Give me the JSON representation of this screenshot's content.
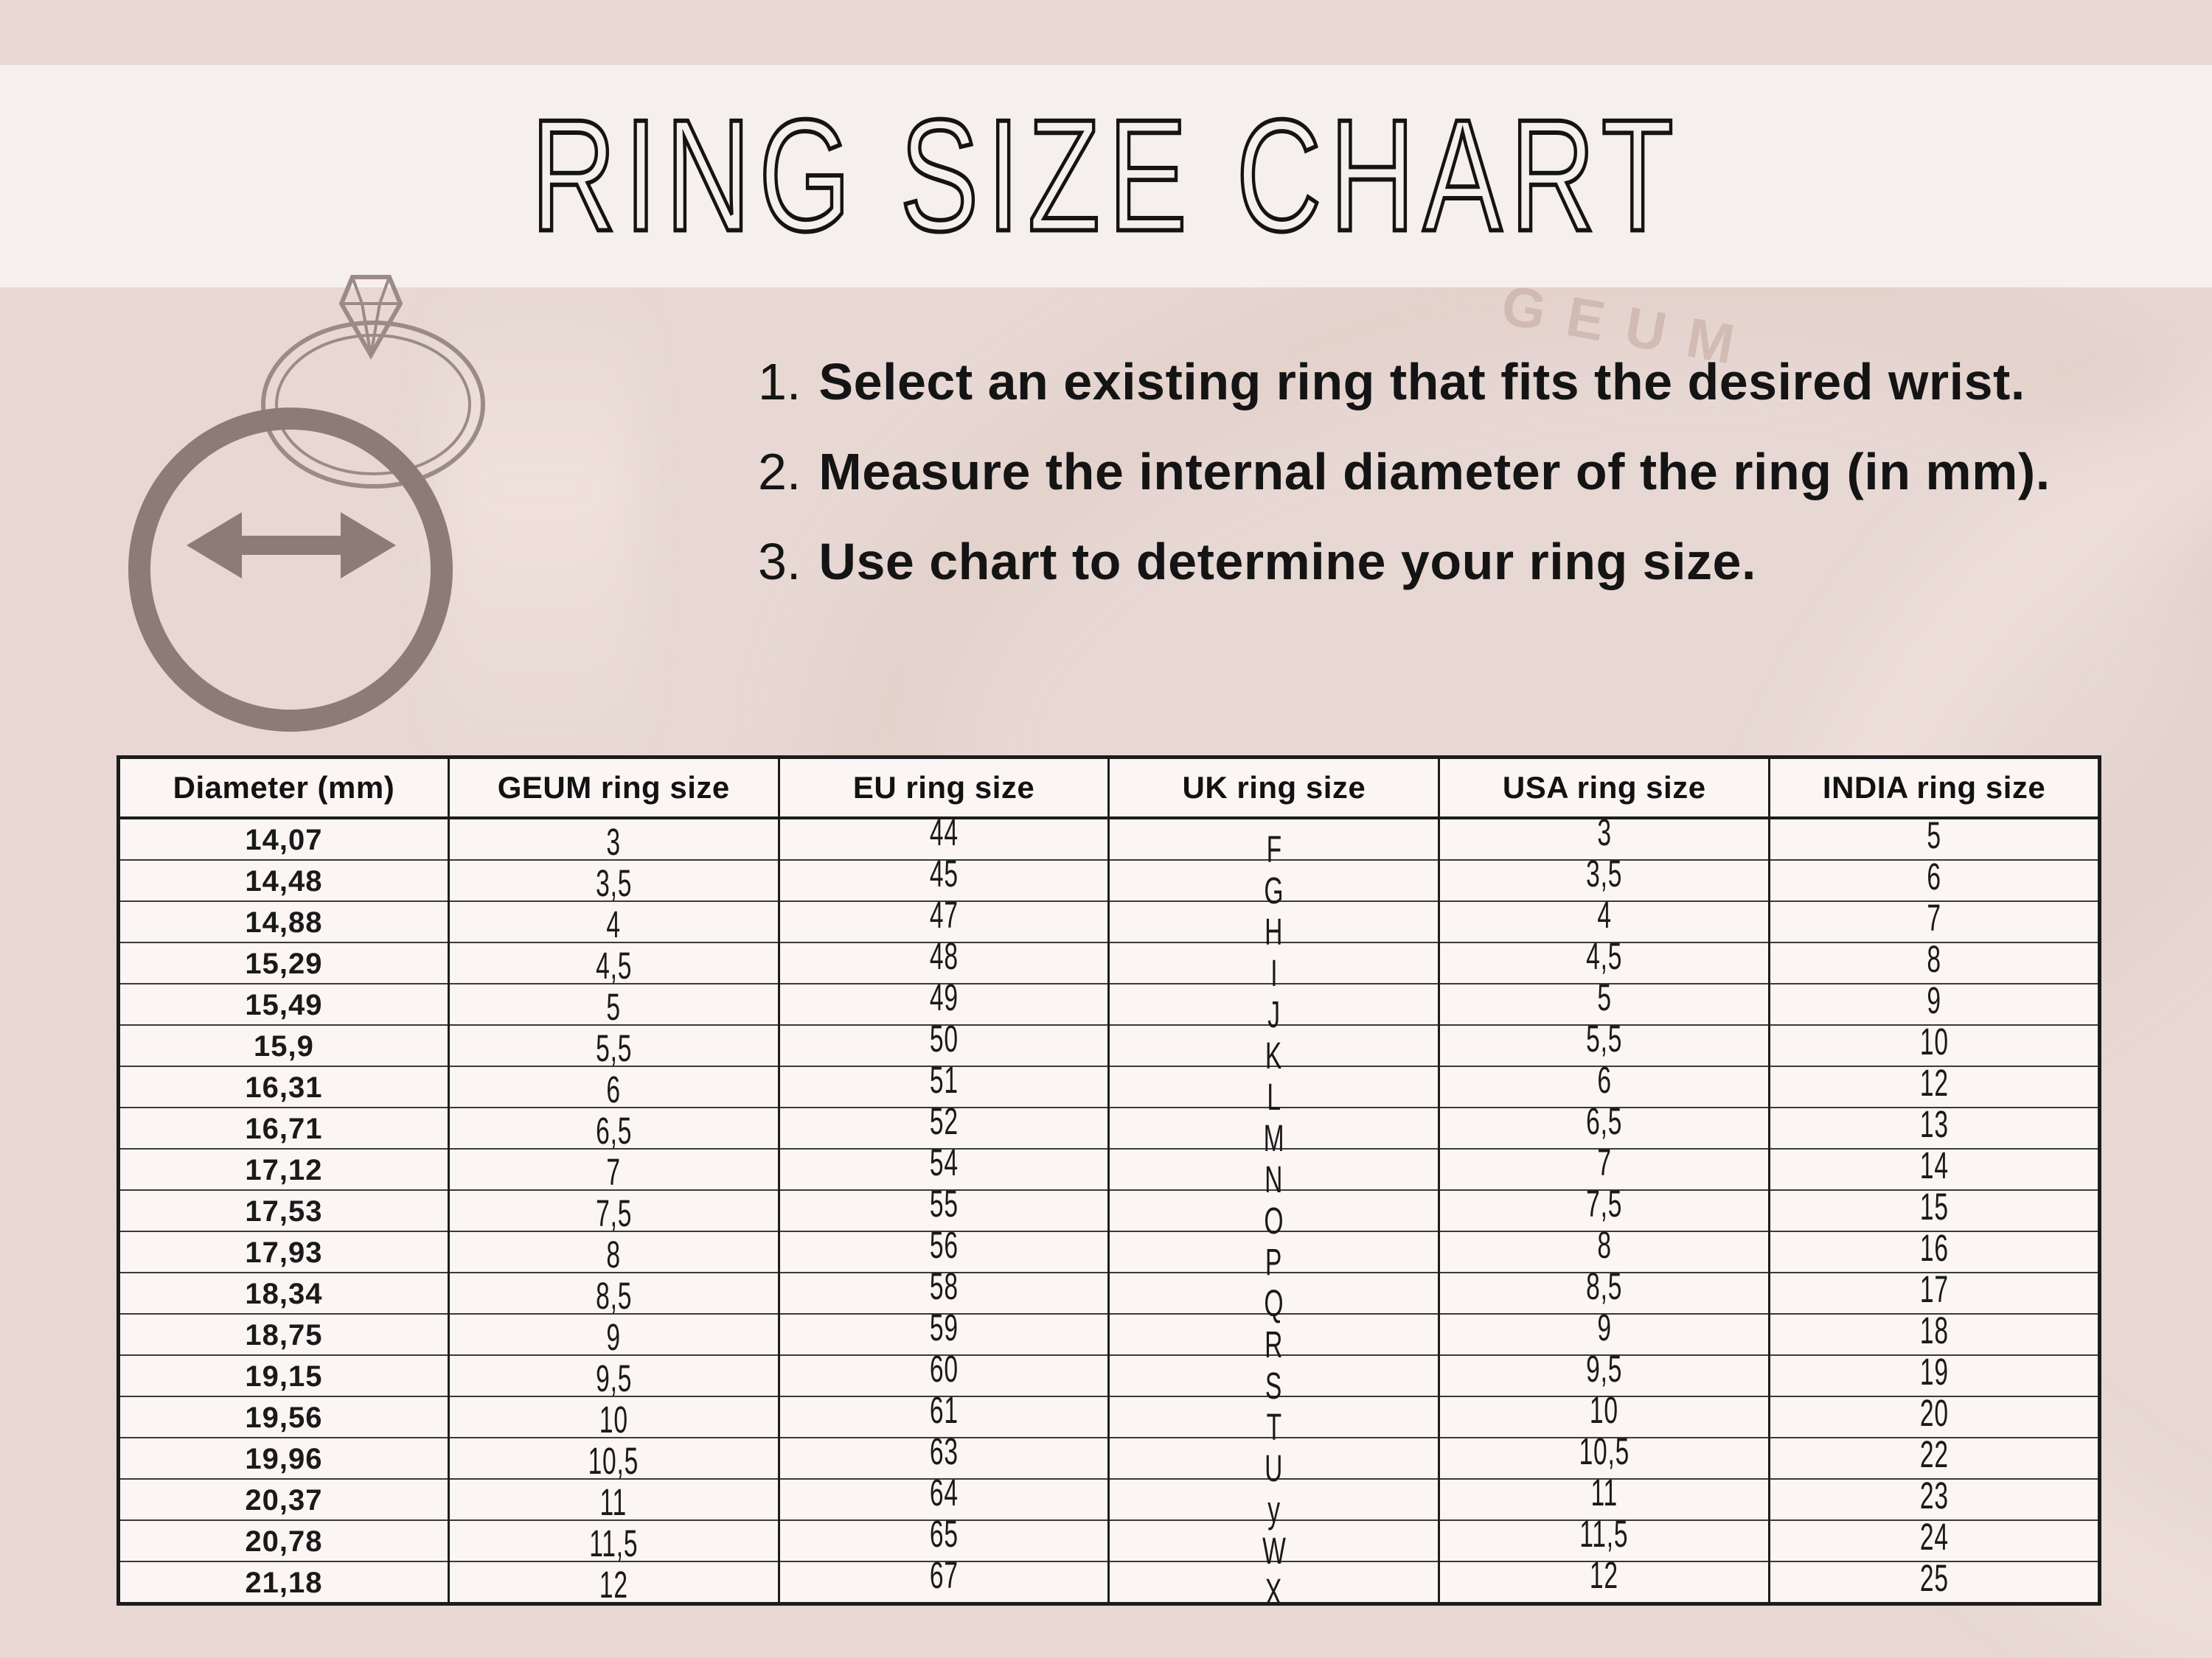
{
  "page_title": "RING SIZE CHART",
  "watermark_text": "GEUM",
  "instructions": [
    {
      "num": "1.",
      "text": "Select an existing ring that fits the desired wrist."
    },
    {
      "num": "2.",
      "text": "Measure the internal diameter of the ring (in mm)."
    },
    {
      "num": "3.",
      "text": "Use chart to determine your ring size."
    }
  ],
  "icon": {
    "name": "ring-diameter-measure-icon",
    "color": "#8d7c76"
  },
  "colors": {
    "page_background": "#e7d8d4",
    "title_band_background": "#f5efee",
    "table_cell_background": "#fbf5f4",
    "table_border": "#1c1c1c",
    "text": "#141414",
    "icon": "#8d7c76",
    "watermark": "#c2a79d"
  },
  "chart_data": {
    "type": "table",
    "title": "RING SIZE CHART",
    "columns": [
      "Diameter  (mm)",
      "GEUM ring size",
      "EU ring size",
      "UK ring size",
      "USA ring size",
      "INDIA ring size"
    ],
    "keys": [
      "diameter",
      "geum",
      "eu",
      "uk",
      "usa",
      "india"
    ],
    "rows": [
      [
        "14,07",
        "3",
        "44",
        "F",
        "3",
        "5"
      ],
      [
        "14,48",
        "3,5",
        "45",
        "G",
        "3,5",
        "6"
      ],
      [
        "14,88",
        "4",
        "47",
        "H",
        "4",
        "7"
      ],
      [
        "15,29",
        "4,5",
        "48",
        "I",
        "4,5",
        "8"
      ],
      [
        "15,49",
        "5",
        "49",
        "J",
        "5",
        "9"
      ],
      [
        "15,9",
        "5,5",
        "50",
        "K",
        "5,5",
        "10"
      ],
      [
        "16,31",
        "6",
        "51",
        "L",
        "6",
        "12"
      ],
      [
        "16,71",
        "6,5",
        "52",
        "M",
        "6,5",
        "13"
      ],
      [
        "17,12",
        "7",
        "54",
        "N",
        "7",
        "14"
      ],
      [
        "17,53",
        "7,5",
        "55",
        "O",
        "7,5",
        "15"
      ],
      [
        "17,93",
        "8",
        "56",
        "P",
        "8",
        "16"
      ],
      [
        "18,34",
        "8,5",
        "58",
        "Q",
        "8,5",
        "17"
      ],
      [
        "18,75",
        "9",
        "59",
        "R",
        "9",
        "18"
      ],
      [
        "19,15",
        "9,5",
        "60",
        "S",
        "9,5",
        "19"
      ],
      [
        "19,56",
        "10",
        "61",
        "T",
        "10",
        "20"
      ],
      [
        "19,96",
        "10,5",
        "63",
        "U",
        "10,5",
        "22"
      ],
      [
        "20,37",
        "11",
        "64",
        "y",
        "11",
        "23"
      ],
      [
        "20,78",
        "11,5",
        "65",
        "W",
        "11,5",
        "24"
      ],
      [
        "21,18",
        "12",
        "67",
        "X",
        "12",
        "25"
      ]
    ]
  }
}
